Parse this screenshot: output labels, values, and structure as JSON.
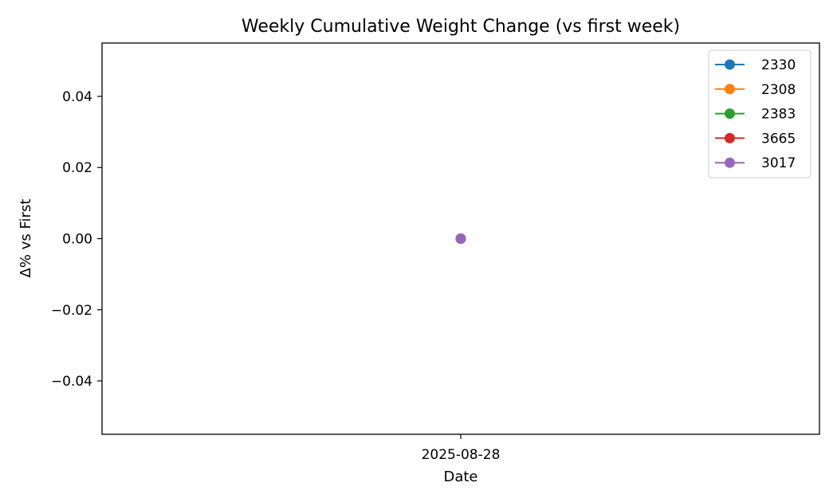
{
  "chart_data": {
    "type": "line",
    "title": "Weekly Cumulative Weight Change (vs first week)",
    "xlabel": "Date",
    "ylabel": "Δ% vs First",
    "x": [
      "2025-08-28"
    ],
    "ylim": [
      -0.055,
      0.055
    ],
    "yticks": [
      -0.04,
      -0.02,
      0.0,
      0.02,
      0.04
    ],
    "ytick_labels": [
      "−0.04",
      "−0.02",
      "0.00",
      "0.02",
      "0.04"
    ],
    "grid": false,
    "legend_position": "top-right",
    "series": [
      {
        "name": "2330",
        "color": "#1f77b4",
        "values": [
          0
        ]
      },
      {
        "name": "2308",
        "color": "#ff7f0e",
        "values": [
          0
        ]
      },
      {
        "name": "2383",
        "color": "#2ca02c",
        "values": [
          0
        ]
      },
      {
        "name": "3665",
        "color": "#d62728",
        "values": [
          0
        ]
      },
      {
        "name": "3017",
        "color": "#9467bd",
        "values": [
          0
        ]
      }
    ]
  }
}
